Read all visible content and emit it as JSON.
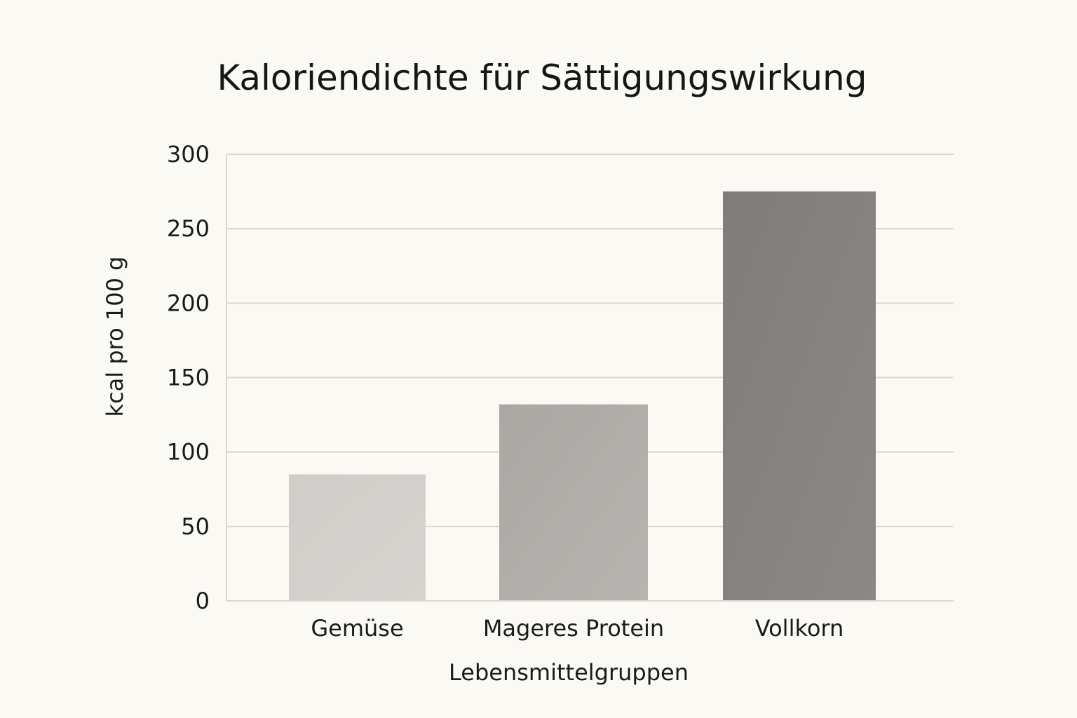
{
  "chart_data": {
    "type": "bar",
    "title": "Kaloriendichte für Sättigungswirkung",
    "xlabel": "Lebensmittelgruppen",
    "ylabel": "kcal pro 100 g",
    "categories": [
      "Gemüse",
      "Mageres Protein",
      "Vollkorn"
    ],
    "values": [
      85,
      132,
      275
    ],
    "ylim": [
      0,
      300
    ],
    "yticks": [
      "0",
      "50",
      "100",
      "150",
      "200",
      "250",
      "300"
    ],
    "grid": true,
    "bar_colors": [
      "#d2d0cb",
      "#b0aea9",
      "#858380"
    ]
  },
  "colors": {
    "background": "#fbf9f4",
    "gridline": "#d9d7d2",
    "text": "#1a1a1a"
  }
}
